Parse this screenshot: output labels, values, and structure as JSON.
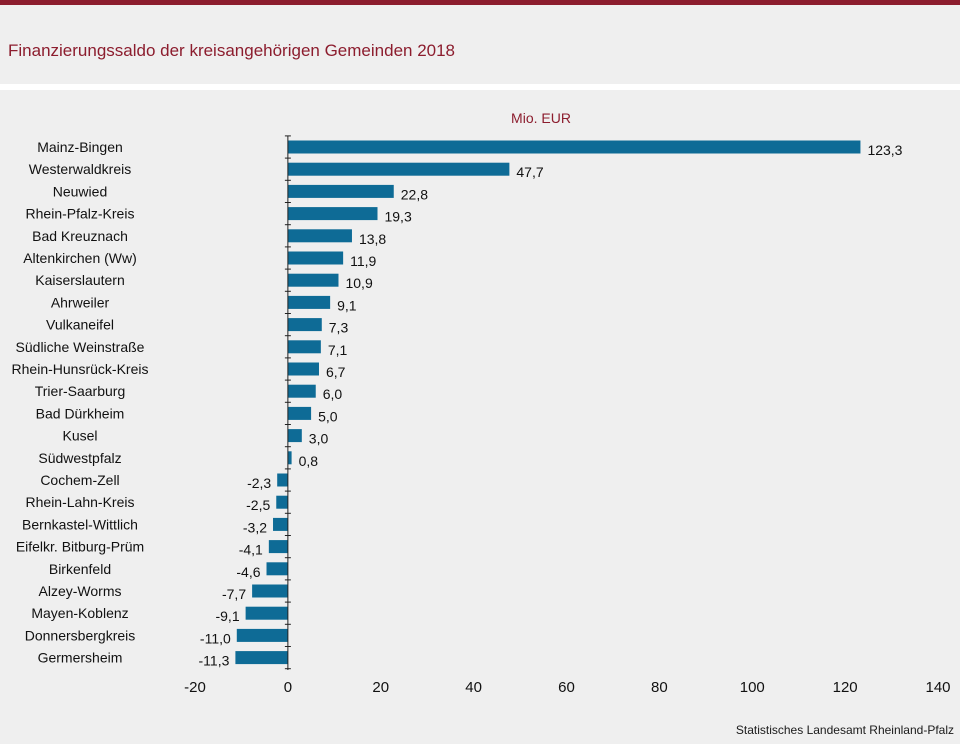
{
  "header": {
    "title": "Finanzierungssaldo der kreisangehörigen Gemeinden 2018"
  },
  "footer": {
    "source": "Statistisches Landesamt  Rheinland-Pfalz"
  },
  "colors": {
    "bar": "#0e6b96",
    "accent": "#8c1d2e",
    "background": "#efefef"
  },
  "chart_data": {
    "type": "bar",
    "orientation": "horizontal",
    "unit_label": "Mio. EUR",
    "categories": [
      "Mainz-Bingen",
      "Westerwaldkreis",
      "Neuwied",
      "Rhein-Pfalz-Kreis",
      "Bad Kreuznach",
      "Altenkirchen (Ww)",
      "Kaiserslautern",
      "Ahrweiler",
      "Vulkaneifel",
      "Südliche Weinstraße",
      "Rhein-Hunsrück-Kreis",
      "Trier-Saarburg",
      "Bad Dürkheim",
      "Kusel",
      "Südwestpfalz",
      "Cochem-Zell",
      "Rhein-Lahn-Kreis",
      "Bernkastel-Wittlich",
      "Eifelkr. Bitburg-Prüm",
      "Birkenfeld",
      "Alzey-Worms",
      "Mayen-Koblenz",
      "Donnersbergkreis",
      "Germersheim"
    ],
    "values": [
      123.3,
      47.7,
      22.8,
      19.3,
      13.8,
      11.9,
      10.9,
      9.1,
      7.3,
      7.1,
      6.7,
      6.0,
      5.0,
      3.0,
      0.8,
      -2.3,
      -2.5,
      -3.2,
      -4.1,
      -4.6,
      -7.7,
      -9.1,
      -11.0,
      -11.3
    ],
    "value_labels": [
      "123,3",
      "47,7",
      "22,8",
      "19,3",
      "13,8",
      "11,9",
      "10,9",
      "9,1",
      "7,3",
      "7,1",
      "6,7",
      "6,0",
      "5,0",
      "3,0",
      "0,8",
      "-2,3",
      "-2,5",
      "-3,2",
      "-4,1",
      "-4,6",
      "-7,7",
      "-9,1",
      "-11,0",
      "-11,3"
    ],
    "xlim": [
      -20,
      140
    ],
    "xticks": [
      "-20",
      "0",
      "20",
      "40",
      "60",
      "80",
      "100",
      "120",
      "140"
    ],
    "xtick_values": [
      -20,
      0,
      20,
      40,
      60,
      80,
      100,
      120,
      140
    ],
    "grid": false,
    "legend": "none"
  }
}
